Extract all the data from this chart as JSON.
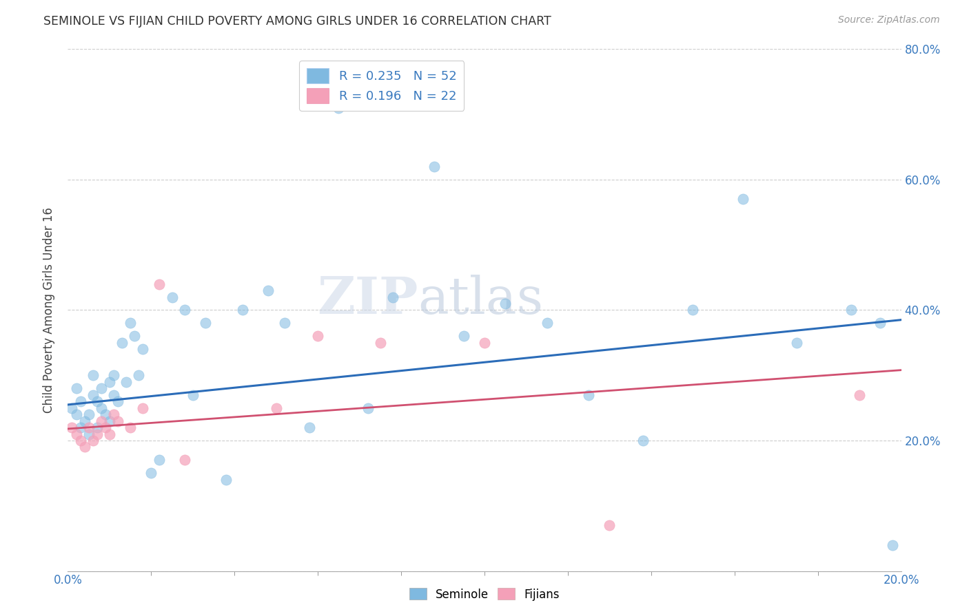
{
  "title": "SEMINOLE VS FIJIAN CHILD POVERTY AMONG GIRLS UNDER 16 CORRELATION CHART",
  "source": "Source: ZipAtlas.com",
  "ylabel": "Child Poverty Among Girls Under 16",
  "xlim": [
    0,
    0.2
  ],
  "ylim": [
    0,
    0.8
  ],
  "seminole_color": "#7fb9e0",
  "fijian_color": "#f4a0b8",
  "seminole_line_color": "#2b6cb8",
  "fijian_line_color": "#d05070",
  "seminole_R": 0.235,
  "seminole_N": 52,
  "fijian_R": 0.196,
  "fijian_N": 22,
  "watermark_zip": "ZIP",
  "watermark_atlas": "atlas",
  "grid_color": "#cccccc",
  "background_color": "#ffffff",
  "seminole_x": [
    0.001,
    0.002,
    0.002,
    0.003,
    0.003,
    0.004,
    0.005,
    0.005,
    0.006,
    0.006,
    0.007,
    0.007,
    0.008,
    0.008,
    0.009,
    0.01,
    0.01,
    0.011,
    0.011,
    0.012,
    0.013,
    0.014,
    0.015,
    0.016,
    0.017,
    0.018,
    0.02,
    0.022,
    0.025,
    0.028,
    0.03,
    0.033,
    0.038,
    0.042,
    0.048,
    0.052,
    0.058,
    0.065,
    0.072,
    0.078,
    0.088,
    0.095,
    0.105,
    0.115,
    0.125,
    0.138,
    0.15,
    0.162,
    0.175,
    0.188,
    0.195,
    0.198
  ],
  "seminole_y": [
    0.25,
    0.28,
    0.24,
    0.22,
    0.26,
    0.23,
    0.24,
    0.21,
    0.3,
    0.27,
    0.26,
    0.22,
    0.25,
    0.28,
    0.24,
    0.29,
    0.23,
    0.27,
    0.3,
    0.26,
    0.35,
    0.29,
    0.38,
    0.36,
    0.3,
    0.34,
    0.15,
    0.17,
    0.42,
    0.4,
    0.27,
    0.38,
    0.14,
    0.4,
    0.43,
    0.38,
    0.22,
    0.71,
    0.25,
    0.42,
    0.62,
    0.36,
    0.41,
    0.38,
    0.27,
    0.2,
    0.4,
    0.57,
    0.35,
    0.4,
    0.38,
    0.04
  ],
  "fijian_x": [
    0.001,
    0.002,
    0.003,
    0.004,
    0.005,
    0.006,
    0.007,
    0.008,
    0.009,
    0.01,
    0.011,
    0.012,
    0.015,
    0.018,
    0.022,
    0.028,
    0.05,
    0.06,
    0.075,
    0.1,
    0.13,
    0.19
  ],
  "fijian_y": [
    0.22,
    0.21,
    0.2,
    0.19,
    0.22,
    0.2,
    0.21,
    0.23,
    0.22,
    0.21,
    0.24,
    0.23,
    0.22,
    0.25,
    0.44,
    0.17,
    0.25,
    0.36,
    0.35,
    0.35,
    0.07,
    0.27
  ]
}
